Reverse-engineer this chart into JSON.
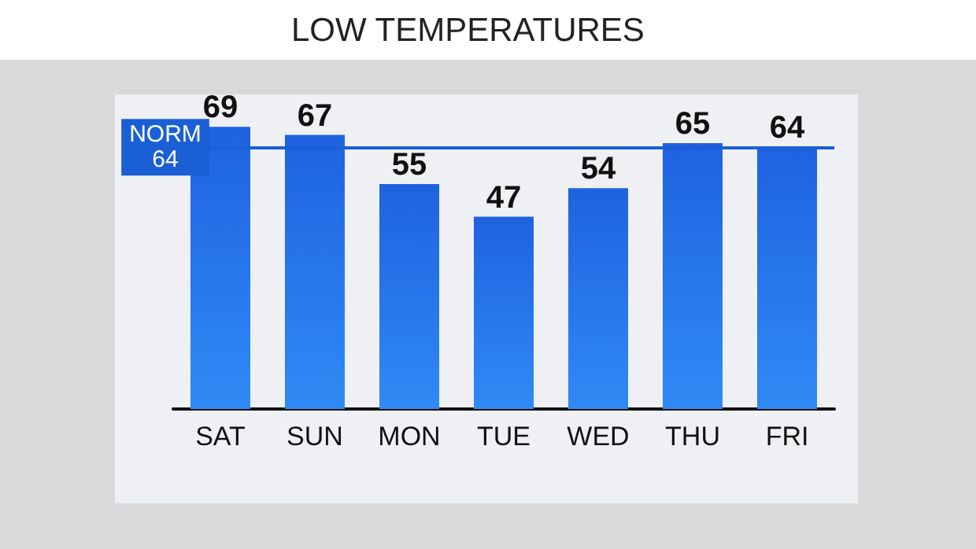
{
  "chart_data": {
    "type": "bar",
    "title": "LOW TEMPERATURES",
    "categories": [
      "SAT",
      "SUN",
      "MON",
      "TUE",
      "WED",
      "THU",
      "FRI"
    ],
    "values": [
      69,
      67,
      55,
      47,
      54,
      65,
      64
    ],
    "color": "#1f62e0",
    "data_labels": true,
    "ref_lines": [
      {
        "axis": "y",
        "value": 64,
        "label": "NORM\n64",
        "color": "#1a5fd6"
      }
    ]
  }
}
